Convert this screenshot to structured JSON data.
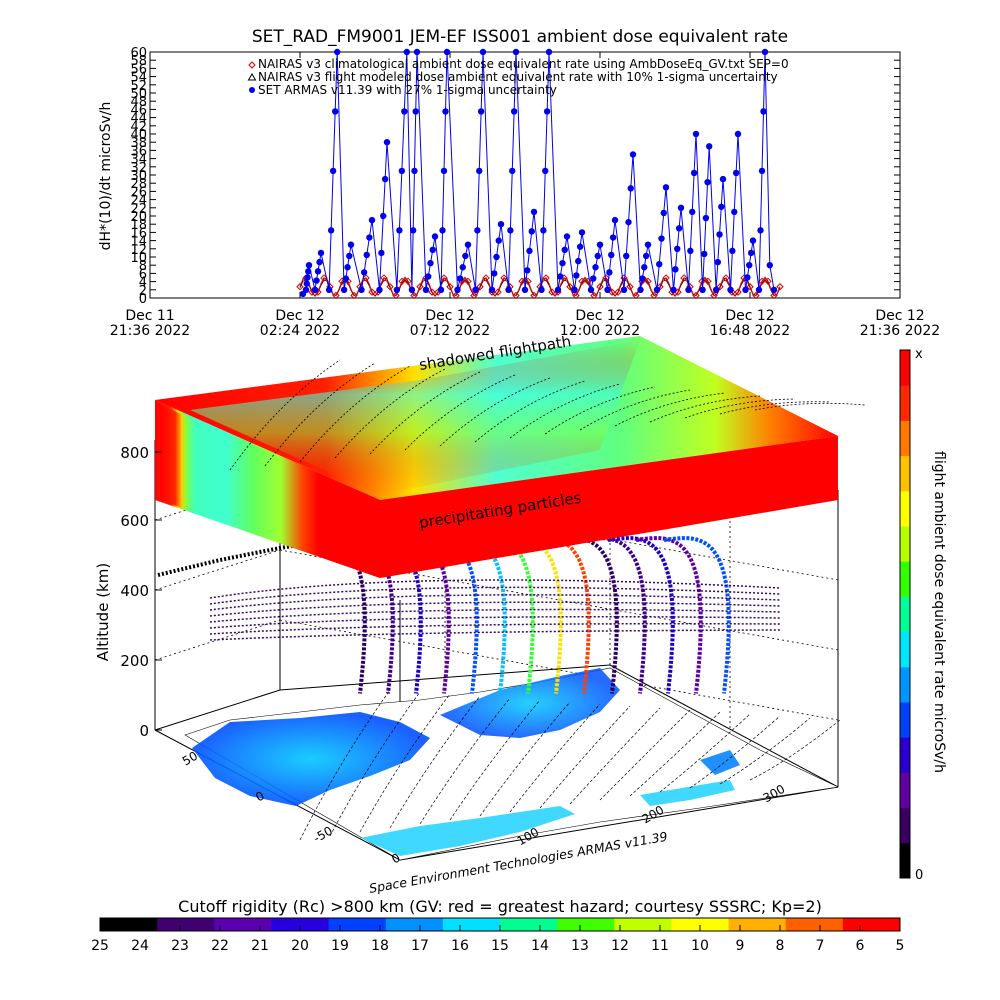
{
  "chart_data": [
    {
      "type": "line",
      "title": "SET_RAD_FM9001  JEM-EF ISS001 ambient dose equivalent rate",
      "ylabel": "dH*(10)/dt microSv/h",
      "ylim": [
        0,
        60
      ],
      "yticks": [
        "0",
        "2",
        "4",
        "6",
        "8",
        "10",
        "12",
        "14",
        "16",
        "18",
        "20",
        "22",
        "24",
        "26",
        "28",
        "30",
        "32",
        "34",
        "36",
        "38",
        "40",
        "42",
        "44",
        "46",
        "48",
        "50",
        "52",
        "54",
        "56",
        "58",
        "60"
      ],
      "xticks": [
        {
          "line1": "Dec 11",
          "line2": "21:36 2022"
        },
        {
          "line1": "Dec 12",
          "line2": "02:24 2022"
        },
        {
          "line1": "Dec 12",
          "line2": "07:12 2022"
        },
        {
          "line1": "Dec 12",
          "line2": "12:00 2022"
        },
        {
          "line1": "Dec 12",
          "line2": "16:48 2022"
        },
        {
          "line1": "Dec 12",
          "line2": "21:36 2022"
        }
      ],
      "legend": [
        {
          "marker": "diamond",
          "color": "#cc0000",
          "text": "NAIRAS v3 climatological ambient dose equivalent rate using AmbDoseEq_GV.txt SEP=0"
        },
        {
          "marker": "triangle",
          "color": "#000000",
          "text": "NAIRAS v3 flight modeled dose ambient equivalent rate with 10% 1-sigma uncertainty"
        },
        {
          "marker": "circle",
          "color": "#0000ee",
          "text": "SET ARMAS v11.39 with 27% 1-sigma uncertainty"
        }
      ],
      "series_names": [
        "NAIRAS v3 climatological",
        "NAIRAS v3 flight modeled",
        "SET ARMAS v11.39"
      ],
      "series_colors": [
        "#cc0000",
        "#000000",
        "#0000ee"
      ],
      "orbit_peaks": [
        {
          "t": 0.215,
          "v": 8
        },
        {
          "t": 0.235,
          "v": 11
        },
        {
          "t": 0.262,
          "v": 60
        },
        {
          "t": 0.285,
          "v": 13
        },
        {
          "t": 0.32,
          "v": 19
        },
        {
          "t": 0.345,
          "v": 38
        },
        {
          "t": 0.378,
          "v": 60
        },
        {
          "t": 0.395,
          "v": 60
        },
        {
          "t": 0.425,
          "v": 15
        },
        {
          "t": 0.445,
          "v": 60
        },
        {
          "t": 0.48,
          "v": 13
        },
        {
          "t": 0.505,
          "v": 60
        },
        {
          "t": 0.535,
          "v": 18
        },
        {
          "t": 0.56,
          "v": 60
        },
        {
          "t": 0.59,
          "v": 21
        },
        {
          "t": 0.615,
          "v": 60
        },
        {
          "t": 0.645,
          "v": 15
        },
        {
          "t": 0.67,
          "v": 16
        },
        {
          "t": 0.7,
          "v": 13
        },
        {
          "t": 0.725,
          "v": 19
        },
        {
          "t": 0.755,
          "v": 35
        },
        {
          "t": 0.78,
          "v": 13
        },
        {
          "t": 0.81,
          "v": 27
        },
        {
          "t": 0.835,
          "v": 22
        },
        {
          "t": 0.86,
          "v": 40
        },
        {
          "t": 0.882,
          "v": 37
        },
        {
          "t": 0.905,
          "v": 29
        },
        {
          "t": 0.93,
          "v": 40
        },
        {
          "t": 0.955,
          "v": 14
        },
        {
          "t": 0.975,
          "v": 60
        }
      ],
      "model_baseline": {
        "min": 0.5,
        "max": 5,
        "cycles": 24
      }
    },
    {
      "type": "heatmap",
      "ylabel": "Altitude (km)",
      "zticks": [
        "0",
        "200",
        "400",
        "600",
        "800"
      ],
      "lat_ticks": [
        "-50",
        "0",
        "50"
      ],
      "lon_ticks": [
        "0",
        "100",
        "200",
        "300"
      ],
      "annotations": [
        "shadowed flightpath",
        "precipitating particles"
      ],
      "credit": "Space Environment Technologies ARMAS v11.39",
      "colorbar": {
        "label": "flight ambient dose equivalent rate microSv/h",
        "top_label": "x",
        "bottom_label": "0",
        "colors": [
          "#000000",
          "#3a0060",
          "#6000a0",
          "#2a00d0",
          "#0040ff",
          "#0096ff",
          "#00e6ff",
          "#00ff96",
          "#32ff00",
          "#b4ff00",
          "#ffff00",
          "#ffc000",
          "#ff7800",
          "#ff2800",
          "#ff0000"
        ]
      }
    },
    {
      "type": "heatmap",
      "title": "Cutoff rigidity (Rc) >800 km (GV: red = greatest hazard; courtesy SSSRC; Kp=2)",
      "ticks": [
        "25",
        "24",
        "23",
        "22",
        "21",
        "20",
        "19",
        "18",
        "17",
        "16",
        "15",
        "14",
        "13",
        "12",
        "11",
        "10",
        "9",
        "8",
        "7",
        "6",
        "5"
      ],
      "colors": [
        "#000000",
        "#400070",
        "#5a00b0",
        "#2800e0",
        "#0040ff",
        "#0090ff",
        "#00e0ff",
        "#00ff90",
        "#40ff00",
        "#c0ff00",
        "#ffff00",
        "#ffb000",
        "#ff6000",
        "#ff0000"
      ]
    }
  ]
}
